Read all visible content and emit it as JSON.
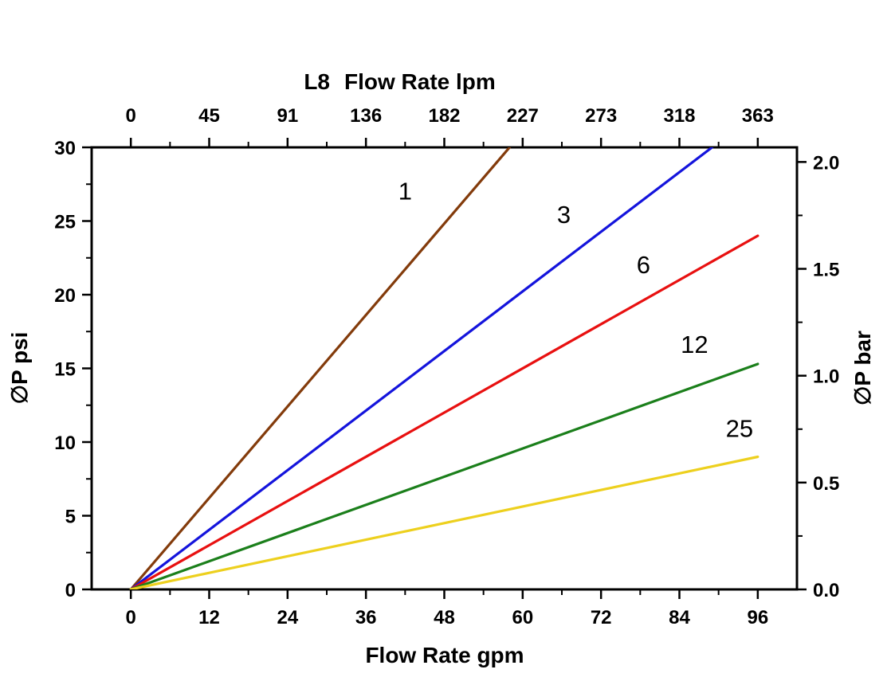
{
  "chart_data": {
    "type": "line",
    "title": "L8 Flow Rate lpm",
    "title_model": "L8",
    "title_text": "Flow Rate lpm",
    "xlabel": "Flow Rate gpm",
    "ylabel_left": "∅P psi",
    "ylabel_right": "∅P bar",
    "xlim": [
      -6,
      102
    ],
    "ylim": [
      0,
      30
    ],
    "grid": false,
    "legend": "inline-labels",
    "x_ticks_gpm": [
      0,
      12,
      24,
      36,
      48,
      60,
      72,
      84,
      96
    ],
    "x_ticks_lpm": [
      "0",
      "45",
      "91",
      "136",
      "182",
      "227",
      "273",
      "318",
      "363"
    ],
    "y_ticks_psi": [
      0,
      5,
      10,
      15,
      20,
      25,
      30
    ],
    "y_ticks_bar": {
      "labels": [
        "0.0",
        "0.5",
        "1.0",
        "1.5",
        "2.0"
      ],
      "values": [
        0,
        0.5,
        1,
        1.5,
        2
      ]
    },
    "series": [
      {
        "name": "1",
        "color": "#833B0B",
        "points": [
          [
            0,
            0
          ],
          [
            58,
            30
          ]
        ],
        "label_at": [
          42.0,
          27.0
        ]
      },
      {
        "name": "3",
        "color": "#1414DC",
        "points": [
          [
            0,
            0
          ],
          [
            89,
            30
          ]
        ],
        "label_at": [
          66.3,
          25.4
        ]
      },
      {
        "name": "6",
        "color": "#E81010",
        "points": [
          [
            0,
            0
          ],
          [
            96,
            24
          ]
        ],
        "label_at": [
          78.5,
          22.0
        ]
      },
      {
        "name": "12",
        "color": "#1B7F1B",
        "points": [
          [
            0,
            0
          ],
          [
            96,
            15.3
          ]
        ],
        "label_at": [
          86.3,
          16.6
        ]
      },
      {
        "name": "25",
        "color": "#EDD01E",
        "points": [
          [
            0,
            0
          ],
          [
            96,
            9
          ]
        ],
        "label_at": [
          93.2,
          10.9
        ]
      }
    ]
  }
}
